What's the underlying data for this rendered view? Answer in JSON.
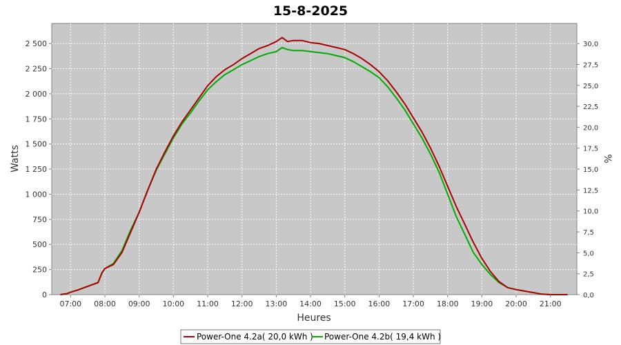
{
  "chart_data": {
    "type": "line",
    "title": "15-8-2025",
    "xlabel": "Heures",
    "ylabel": "Watts",
    "y2label": "%",
    "xlim": [
      6.45,
      21.77
    ],
    "ylim": [
      0,
      2700
    ],
    "y2lim": [
      0,
      32.4
    ],
    "x_ticks": [
      {
        "v": 7,
        "label": "07:00"
      },
      {
        "v": 8,
        "label": "08:00"
      },
      {
        "v": 9,
        "label": "09:00"
      },
      {
        "v": 10,
        "label": "10:00"
      },
      {
        "v": 11,
        "label": "11:00"
      },
      {
        "v": 12,
        "label": "12:00"
      },
      {
        "v": 13,
        "label": "13:00"
      },
      {
        "v": 14,
        "label": "14:00"
      },
      {
        "v": 15,
        "label": "15:00"
      },
      {
        "v": 16,
        "label": "16:00"
      },
      {
        "v": 17,
        "label": "17:00"
      },
      {
        "v": 18,
        "label": "18:00"
      },
      {
        "v": 19,
        "label": "19:00"
      },
      {
        "v": 20,
        "label": "20:00"
      },
      {
        "v": 21,
        "label": "21:00"
      }
    ],
    "y_ticks": [
      {
        "v": 0,
        "label": "0"
      },
      {
        "v": 250,
        "label": "250"
      },
      {
        "v": 500,
        "label": "500"
      },
      {
        "v": 750,
        "label": "750"
      },
      {
        "v": 1000,
        "label": "1 000"
      },
      {
        "v": 1250,
        "label": "1 250"
      },
      {
        "v": 1500,
        "label": "1 500"
      },
      {
        "v": 1750,
        "label": "1 750"
      },
      {
        "v": 2000,
        "label": "2 000"
      },
      {
        "v": 2250,
        "label": "2 250"
      },
      {
        "v": 2500,
        "label": "2 500"
      }
    ],
    "y2_ticks": [
      {
        "v": 0,
        "label": "0,0"
      },
      {
        "v": 2.5,
        "label": "2,5"
      },
      {
        "v": 5,
        "label": "5,0"
      },
      {
        "v": 7.5,
        "label": "7,5"
      },
      {
        "v": 10,
        "label": "10,0"
      },
      {
        "v": 12.5,
        "label": "12,5"
      },
      {
        "v": 15,
        "label": "15,0"
      },
      {
        "v": 17.5,
        "label": "17,5"
      },
      {
        "v": 20,
        "label": "20,0"
      },
      {
        "v": 22.5,
        "label": "22,5"
      },
      {
        "v": 25,
        "label": "25,0"
      },
      {
        "v": 27.5,
        "label": "27,5"
      },
      {
        "v": 30,
        "label": "30,0"
      }
    ],
    "grid": true,
    "legend_position": "bottom",
    "colors": {
      "plot_bg": "#c8c8c8",
      "grid": "#ffffff",
      "series_a": "#aa0000",
      "series_b": "#00aa00"
    },
    "series": [
      {
        "name": "Power-One 4.2a( 20,0 kWh )",
        "color": "#aa0000",
        "x": [
          6.7,
          6.9,
          7.0,
          7.2,
          7.4,
          7.6,
          7.8,
          7.92,
          8.0,
          8.25,
          8.5,
          8.75,
          9.0,
          9.25,
          9.5,
          9.75,
          10.0,
          10.25,
          10.5,
          10.75,
          11.0,
          11.25,
          11.5,
          11.75,
          12.0,
          12.25,
          12.5,
          12.75,
          13.0,
          13.17,
          13.33,
          13.5,
          13.75,
          14.0,
          14.25,
          14.5,
          14.75,
          15.0,
          15.25,
          15.5,
          15.75,
          16.0,
          16.25,
          16.5,
          16.75,
          17.0,
          17.25,
          17.5,
          17.75,
          18.0,
          18.25,
          18.5,
          18.75,
          19.0,
          19.25,
          19.5,
          19.75,
          20.0,
          20.25,
          20.5,
          20.75,
          21.0,
          21.25,
          21.5
        ],
        "y": [
          0,
          10,
          25,
          45,
          70,
          95,
          120,
          220,
          260,
          300,
          420,
          620,
          820,
          1040,
          1250,
          1420,
          1580,
          1720,
          1840,
          1960,
          2080,
          2170,
          2240,
          2290,
          2350,
          2400,
          2450,
          2480,
          2520,
          2560,
          2520,
          2530,
          2530,
          2510,
          2500,
          2480,
          2460,
          2440,
          2400,
          2350,
          2290,
          2220,
          2130,
          2020,
          1900,
          1760,
          1620,
          1460,
          1280,
          1080,
          880,
          700,
          520,
          360,
          230,
          130,
          70,
          50,
          35,
          20,
          5,
          0,
          0,
          0
        ]
      },
      {
        "name": "Power-One 4.2b( 19,4 kWh )",
        "color": "#00aa00",
        "x": [
          6.7,
          6.9,
          7.0,
          7.2,
          7.4,
          7.6,
          7.8,
          7.92,
          8.0,
          8.25,
          8.5,
          8.75,
          9.0,
          9.25,
          9.5,
          9.75,
          10.0,
          10.25,
          10.5,
          10.75,
          11.0,
          11.25,
          11.5,
          11.75,
          12.0,
          12.25,
          12.5,
          12.75,
          13.0,
          13.17,
          13.33,
          13.5,
          13.75,
          14.0,
          14.25,
          14.5,
          14.75,
          15.0,
          15.25,
          15.5,
          15.75,
          16.0,
          16.25,
          16.5,
          16.75,
          17.0,
          17.25,
          17.5,
          17.75,
          18.0,
          18.25,
          18.5,
          18.75,
          19.0,
          19.25,
          19.5,
          19.75,
          20.0,
          20.25,
          20.5,
          20.75,
          21.0,
          21.25,
          21.5
        ],
        "y": [
          0,
          10,
          25,
          45,
          70,
          95,
          120,
          220,
          260,
          310,
          440,
          640,
          820,
          1040,
          1240,
          1400,
          1560,
          1700,
          1810,
          1930,
          2040,
          2120,
          2190,
          2240,
          2290,
          2330,
          2370,
          2400,
          2420,
          2460,
          2440,
          2430,
          2430,
          2420,
          2410,
          2400,
          2380,
          2360,
          2320,
          2270,
          2220,
          2160,
          2070,
          1960,
          1840,
          1700,
          1560,
          1400,
          1220,
          1000,
          780,
          600,
          420,
          300,
          200,
          120,
          70,
          50,
          35,
          20,
          5,
          0,
          0,
          0
        ]
      }
    ]
  }
}
